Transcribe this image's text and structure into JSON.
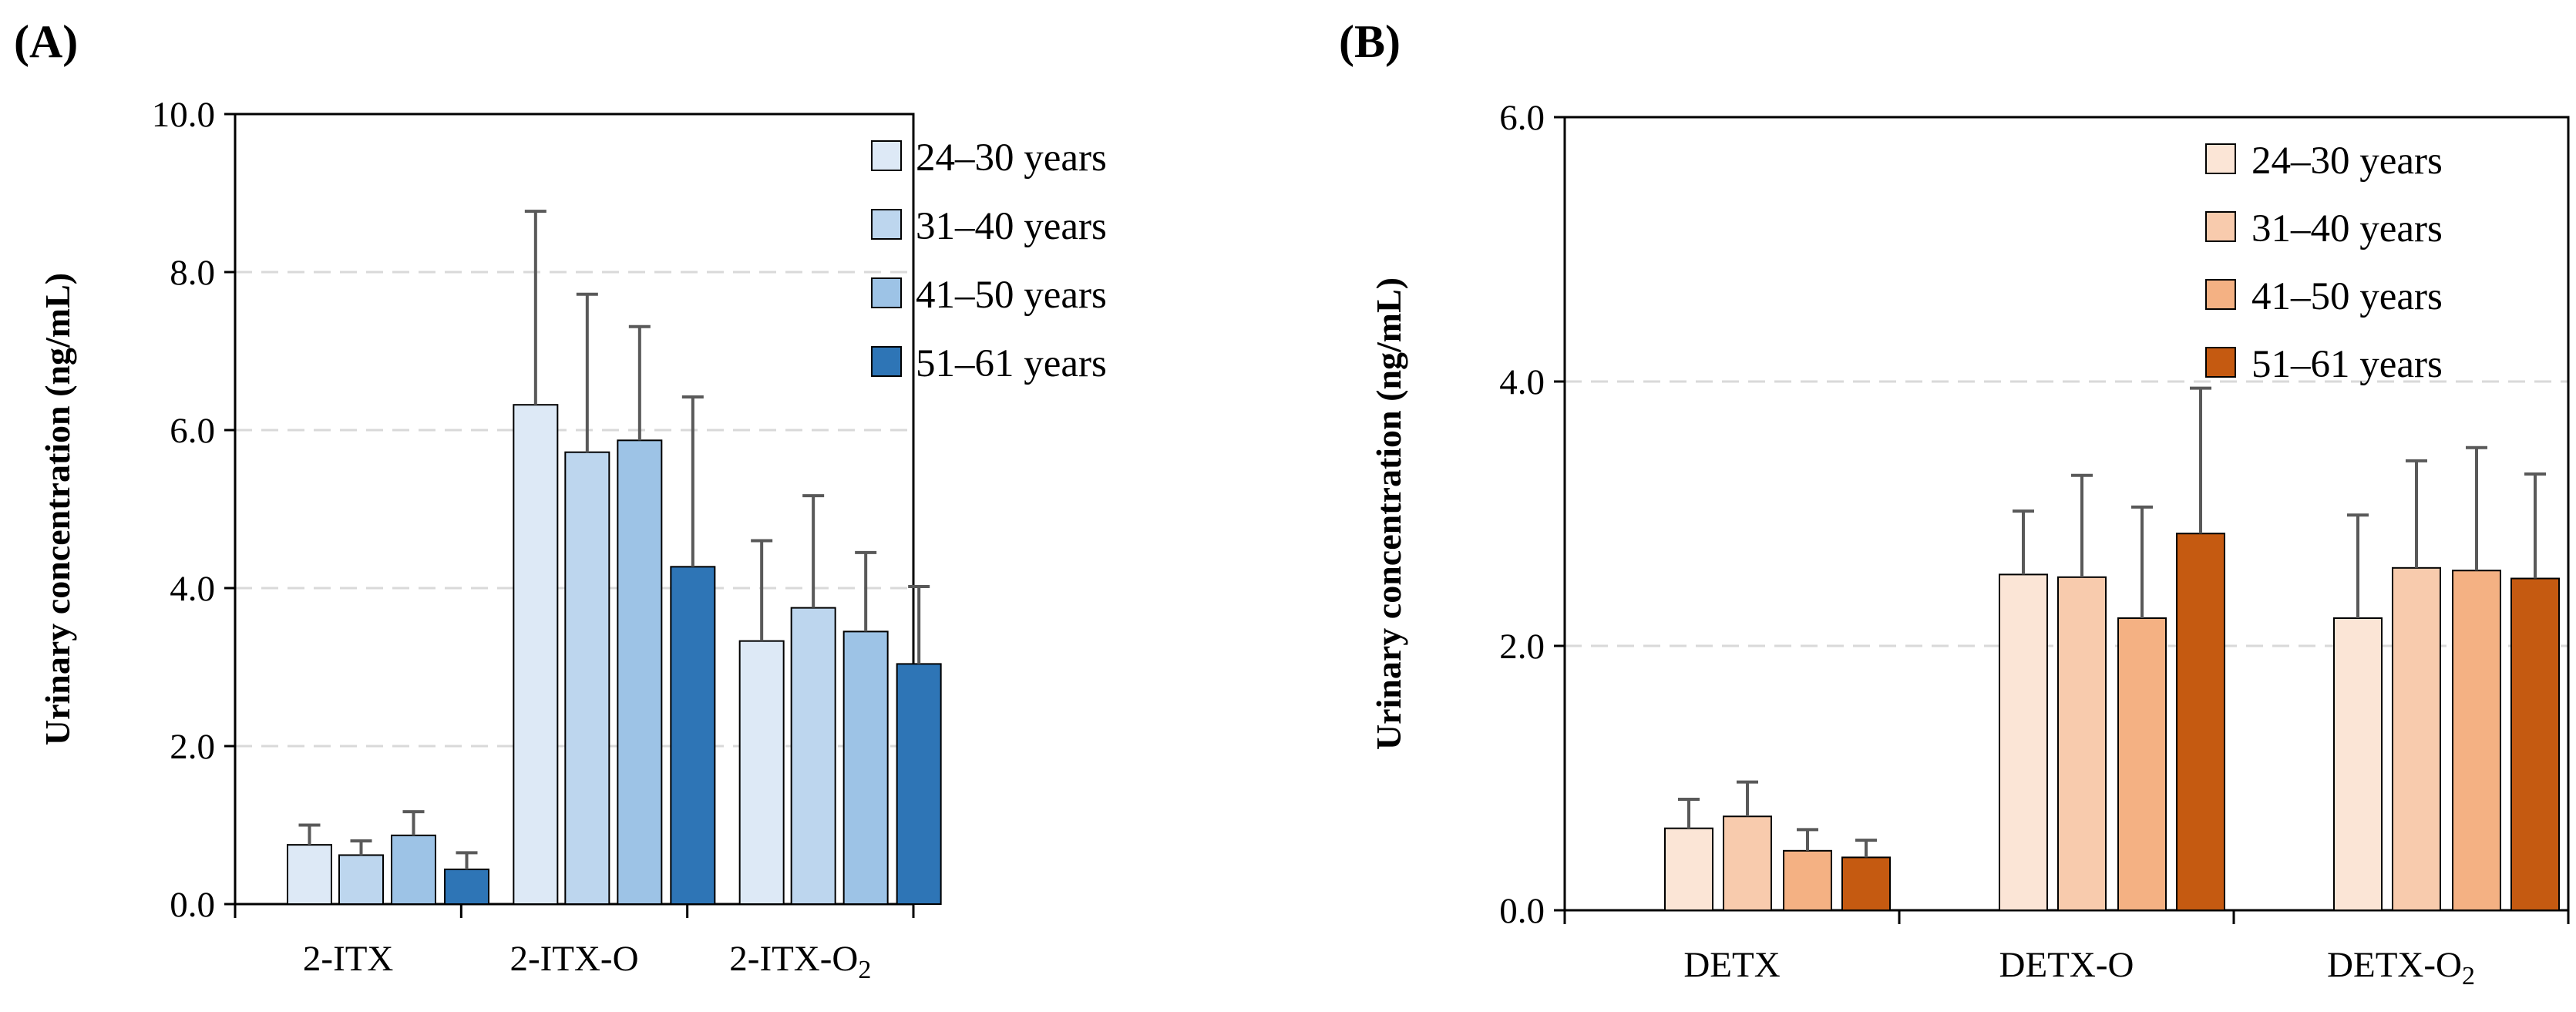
{
  "chart_data": [
    {
      "type": "bar",
      "panel_label": "(A)",
      "ylabel": "Urinary concentration (ng/mL)",
      "ylim": [
        0,
        10
      ],
      "yticks": [
        "0.0",
        "2.0",
        "4.0",
        "6.0",
        "8.0",
        "10.0"
      ],
      "ytick_values": [
        0,
        2,
        4,
        6,
        8,
        10
      ],
      "grid": true,
      "legend_position": "top-right",
      "categories": [
        {
          "label": "2-ITX",
          "sub": ""
        },
        {
          "label": "2-ITX-O",
          "sub": ""
        },
        {
          "label": "2-ITX-O",
          "sub": "2"
        }
      ],
      "series": [
        {
          "name": "24–30 years",
          "color": "#dde9f6",
          "values": [
            0.75,
            6.32,
            3.33
          ],
          "errors": [
            0.25,
            2.45,
            1.27
          ]
        },
        {
          "name": "31–40 years",
          "color": "#bdd6ee",
          "values": [
            0.62,
            5.72,
            3.75
          ],
          "errors": [
            0.18,
            2.0,
            1.42
          ]
        },
        {
          "name": "41–50 years",
          "color": "#9dc3e6",
          "values": [
            0.87,
            5.87,
            3.45
          ],
          "errors": [
            0.3,
            1.44,
            1.0
          ]
        },
        {
          "name": "51–61 years",
          "color": "#2e75b6",
          "values": [
            0.44,
            4.27,
            3.04
          ],
          "errors": [
            0.21,
            2.15,
            0.98
          ]
        }
      ]
    },
    {
      "type": "bar",
      "panel_label": "(B)",
      "ylabel": "Urinary concentration (ng/mL)",
      "ylim": [
        0,
        6
      ],
      "yticks": [
        "0.0",
        "2.0",
        "4.0",
        "6.0"
      ],
      "ytick_values": [
        0,
        2,
        4,
        6
      ],
      "grid": true,
      "legend_position": "top-right",
      "categories": [
        {
          "label": "DETX",
          "sub": ""
        },
        {
          "label": "DETX-O",
          "sub": ""
        },
        {
          "label": "DETX-O",
          "sub": "2"
        }
      ],
      "series": [
        {
          "name": "24–30 years",
          "color": "#fbe5d6",
          "values": [
            0.62,
            2.54,
            2.21
          ],
          "errors": [
            0.22,
            0.48,
            0.78
          ]
        },
        {
          "name": "31–40 years",
          "color": "#f8cbad",
          "values": [
            0.71,
            2.52,
            2.59
          ],
          "errors": [
            0.26,
            0.77,
            0.81
          ]
        },
        {
          "name": "41–50 years",
          "color": "#f4b183",
          "values": [
            0.45,
            2.21,
            2.57
          ],
          "errors": [
            0.16,
            0.84,
            0.93
          ]
        },
        {
          "name": "51–61 years",
          "color": "#c55a11",
          "values": [
            0.4,
            2.85,
            2.51
          ],
          "errors": [
            0.13,
            1.1,
            0.79
          ]
        }
      ]
    }
  ]
}
